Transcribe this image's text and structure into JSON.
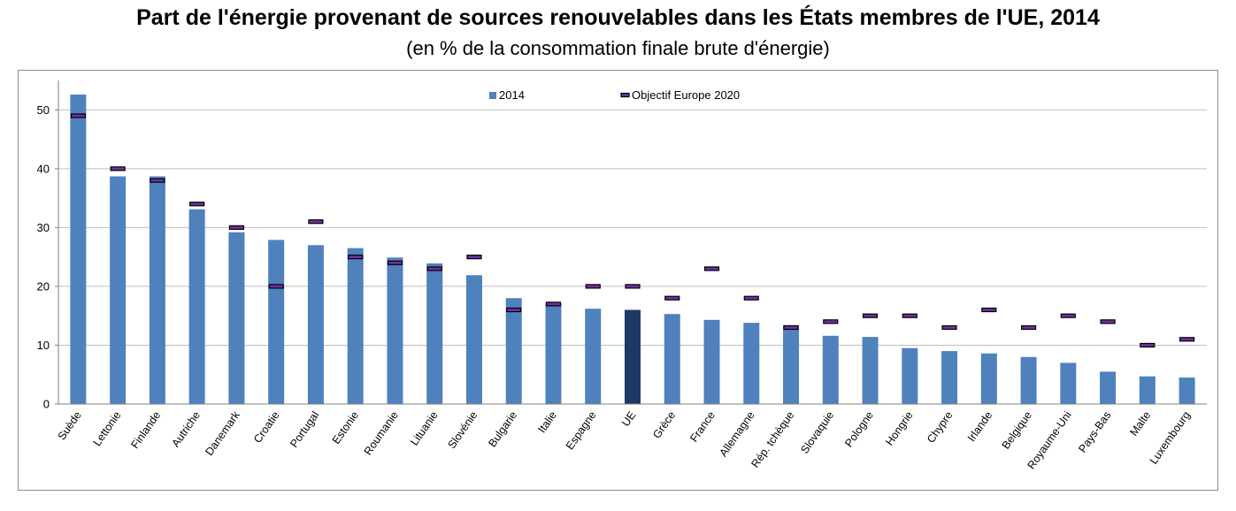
{
  "title": "Part de l'énergie provenant de sources renouvelables dans les États membres de l'UE, 2014",
  "subtitle": "(en % de la consommation finale brute d'énergie)",
  "colors": {
    "bar": "#4f81bd",
    "bar_highlight": "#1f3864",
    "target_fill": "#7030a0",
    "target_stroke": "#000000",
    "grid": "#bfbfbf"
  },
  "chart_data": {
    "type": "bar",
    "title": "Part de l'énergie provenant de sources renouvelables dans les États membres de l'UE, 2014",
    "subtitle": "(en % de la consommation finale brute d'énergie)",
    "xlabel": "",
    "ylabel": "",
    "ylim": [
      0,
      55
    ],
    "yticks": [
      0,
      10,
      20,
      30,
      40,
      50
    ],
    "grid": true,
    "legend_position": "top-center",
    "highlight_category": "UE",
    "categories": [
      "Suède",
      "Lettonie",
      "Finlande",
      "Autriche",
      "Danemark",
      "Croatie",
      "Portugal",
      "Estonie",
      "Roumanie",
      "Lituanie",
      "Slovénie",
      "Bulgarie",
      "Italie",
      "Espagne",
      "UE",
      "Grèce",
      "France",
      "Allemagne",
      "Rép. tchèque",
      "Slovaquie",
      "Pologne",
      "Hongrie",
      "Chypre",
      "Irlande",
      "Belgique",
      "Royaume-Uni",
      "Pays-Bas",
      "Malte",
      "Luxembourg"
    ],
    "series": [
      {
        "name": "2014",
        "type": "bar",
        "values": [
          52.6,
          38.7,
          38.7,
          33.1,
          29.2,
          27.9,
          27.0,
          26.5,
          24.9,
          23.9,
          21.9,
          18.0,
          17.1,
          16.2,
          16.0,
          15.3,
          14.3,
          13.8,
          13.4,
          11.6,
          11.4,
          9.5,
          9.0,
          8.6,
          8.0,
          7.0,
          5.5,
          4.7,
          4.5
        ]
      },
      {
        "name": "Objectif Europe 2020",
        "type": "marker",
        "values": [
          49,
          40,
          38,
          34,
          30,
          20,
          31,
          25,
          24,
          23,
          25,
          16,
          17,
          20,
          20,
          18,
          23,
          18,
          13,
          14,
          15,
          15,
          13,
          16,
          13,
          15,
          14,
          10,
          11
        ]
      }
    ]
  }
}
